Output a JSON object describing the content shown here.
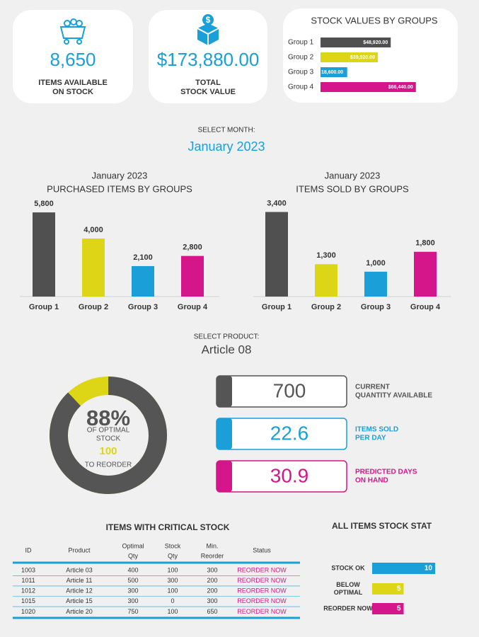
{
  "kpi_cards": [
    {
      "value": "8,650",
      "label": [
        "ITEMS AVAILABLE",
        "ON STOCK"
      ]
    },
    {
      "value": "$173,880.00",
      "label": [
        "TOTAL",
        "STOCK VALUE"
      ]
    }
  ],
  "stock_values": {
    "type": "bar",
    "title": "STOCK VALUES BY GROUPS",
    "categories": [
      "Group 1",
      "Group 2",
      "Group 3",
      "Group 4"
    ],
    "values": [
      48920,
      39920,
      18600,
      66440
    ],
    "value_labels": [
      "$48,920.00",
      "$39,920.00",
      "18,600.00",
      "$66,440.00"
    ],
    "colors": [
      "#505050",
      "#dcd617",
      "#1a9fd8",
      "#d4168a"
    ],
    "xlim": [
      0,
      70000
    ]
  },
  "month_selector": {
    "label": "SELECT MONTH:",
    "value": "January 2023"
  },
  "charts": [
    {
      "type": "bar",
      "subtitle": "January 2023",
      "title": "PURCHASED ITEMS BY GROUPS",
      "categories": [
        "Group 1",
        "Group 2",
        "Group 3",
        "Group 4"
      ],
      "values": [
        5800,
        4000,
        2100,
        2800
      ],
      "value_labels": [
        "5,800",
        "4,000",
        "2,100",
        "2,800"
      ],
      "colors": [
        "#505050",
        "#dcd617",
        "#1a9fd8",
        "#d4168a"
      ],
      "ylim": [
        0,
        6000
      ]
    },
    {
      "type": "bar",
      "subtitle": "January 2023",
      "title": "ITEMS SOLD BY GROUPS",
      "categories": [
        "Group 1",
        "Group 2",
        "Group 3",
        "Group 4"
      ],
      "values": [
        3400,
        1300,
        1000,
        1800
      ],
      "value_labels": [
        "3,400",
        "1,300",
        "1,000",
        "1,800"
      ],
      "colors": [
        "#505050",
        "#dcd617",
        "#1a9fd8",
        "#d4168a"
      ],
      "ylim": [
        0,
        3500
      ]
    }
  ],
  "product_selector": {
    "label": "SELECT PRODUCT:",
    "value": "Article 08"
  },
  "gauge": {
    "type": "donut",
    "value": 88,
    "value_label": "88%",
    "lim": [
      0,
      100
    ],
    "color": "#555555",
    "rest_color": "#dcd617",
    "caption": [
      "OF OPTIMAL",
      "STOCK"
    ],
    "reorder_value": 100,
    "reorder_label": "TO REORDER"
  },
  "metrics": [
    {
      "value": 700,
      "label": [
        "CURRENT",
        "QUANTITY AVAILABLE"
      ],
      "color": "#555555"
    },
    {
      "value": 22.6,
      "label": [
        "ITEMS SOLD",
        "PER DAY"
      ],
      "color": "#1a9fd8"
    },
    {
      "value": 30.9,
      "label": [
        "PREDICTED DAYS",
        "ON HAND"
      ],
      "color": "#d4168a"
    }
  ],
  "critical_table": {
    "title": "ITEMS WITH CRITICAL STOCK",
    "columns": [
      [
        "ID"
      ],
      [
        "Product"
      ],
      [
        "Optimal",
        "Qty"
      ],
      [
        "Stock",
        "Qty"
      ],
      [
        "Min.",
        "Reorder"
      ],
      [
        "Status"
      ]
    ],
    "rows": [
      [
        "1003",
        "Article 03",
        "400",
        "100",
        "300",
        "REORDER NOW"
      ],
      [
        "1011",
        "Article 11",
        "500",
        "300",
        "200",
        "REORDER NOW"
      ],
      [
        "1012",
        "Article 12",
        "300",
        "100",
        "200",
        "REORDER NOW"
      ],
      [
        "1015",
        "Article 15",
        "300",
        "0",
        "300",
        "REORDER NOW"
      ],
      [
        "1020",
        "Article 20",
        "750",
        "100",
        "650",
        "REORDER NOW"
      ]
    ]
  },
  "status_chart": {
    "type": "bar",
    "title": "ALL ITEMS STOCK STAT",
    "categories": [
      [
        "STOCK OK"
      ],
      [
        "BELOW",
        "OPTIMAL"
      ],
      [
        "REORDER NOW"
      ]
    ],
    "values": [
      10,
      5,
      5
    ],
    "colors": [
      "#1a9fd8",
      "#dcd617",
      "#d4168a"
    ],
    "xlim": [
      0,
      10
    ]
  }
}
